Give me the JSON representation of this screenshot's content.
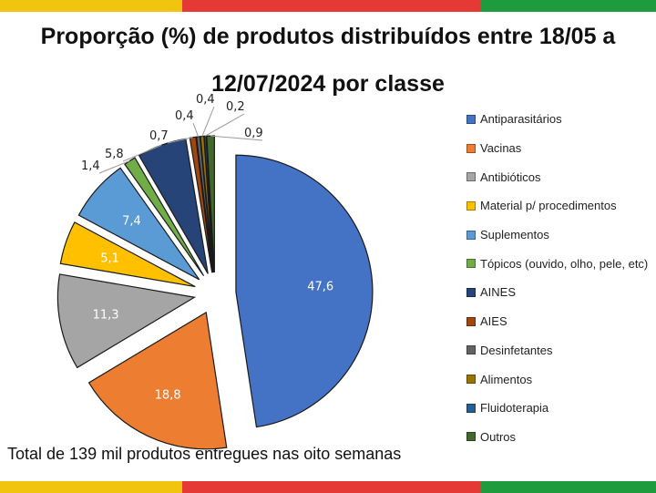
{
  "title_line1": "Proporção (%) de produtos distribuídos entre 18/05 a",
  "title_line2": "12/07/2024 por classe",
  "footer": "Total de 139 mil produtos entregues nas oito semanas",
  "stripe_colors": [
    "#f1c40f",
    "#e53935",
    "#e53935",
    "#1e9b3c"
  ],
  "chart_data": {
    "type": "pie",
    "title": "Proporção (%) de produtos distribuídos entre 18/05 a 12/07/2024 por classe",
    "legend_position": "right",
    "exploded": true,
    "slices": [
      {
        "label": "Antiparasitários",
        "value": 47.6,
        "value_label": "47,6",
        "color": "#4472c4"
      },
      {
        "label": "Vacinas",
        "value": 18.8,
        "value_label": "18,8",
        "color": "#ed7d31"
      },
      {
        "label": "Antibióticos",
        "value": 11.3,
        "value_label": "11,3",
        "color": "#a5a5a5"
      },
      {
        "label": "Material p/ procedimentos",
        "value": 5.1,
        "value_label": "5,1",
        "color": "#ffc000"
      },
      {
        "label": "Suplementos",
        "value": 7.4,
        "value_label": "7,4",
        "color": "#5b9bd5"
      },
      {
        "label": "Tópicos (ouvido, olho, pele, etc)",
        "value": 1.4,
        "value_label": "1,4",
        "color": "#70ad47"
      },
      {
        "label": "AINES",
        "value": 5.8,
        "value_label": "5,8",
        "color": "#264478"
      },
      {
        "label": "AIES",
        "value": 0.7,
        "value_label": "0,7",
        "color": "#9e480e"
      },
      {
        "label": "Desinfetantes",
        "value": 0.4,
        "value_label": "0,4",
        "color": "#636363"
      },
      {
        "label": "Alimentos",
        "value": 0.4,
        "value_label": "0,4",
        "color": "#997300"
      },
      {
        "label": "Fluidoterapia",
        "value": 0.2,
        "value_label": "0,2",
        "color": "#255e91"
      },
      {
        "label": "Outros",
        "value": 0.9,
        "value_label": "0,9",
        "color": "#43682b"
      }
    ]
  }
}
